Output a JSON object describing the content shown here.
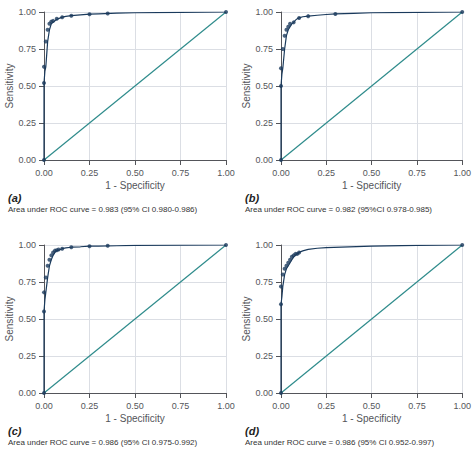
{
  "chart_data": [
    {
      "type": "line",
      "title": "(a)",
      "subtitle": "Area under ROC curve = 0.983 (95% CI 0.980-0.986)",
      "x_label": "1 - Specificity",
      "y_label": "Sensitivity",
      "xlim": [
        0,
        1
      ],
      "ylim": [
        0,
        1
      ],
      "xticks": [
        {
          "value": 0,
          "label": "0.00"
        },
        {
          "value": 0.25,
          "label": "0.25"
        },
        {
          "value": 0.5,
          "label": "0.50"
        },
        {
          "value": 0.75,
          "label": "0.75"
        },
        {
          "value": 1,
          "label": "1.00"
        }
      ],
      "yticks": [
        {
          "value": 0,
          "label": "0.00"
        },
        {
          "value": 0.25,
          "label": "0.25"
        },
        {
          "value": 0.5,
          "label": "0.50"
        },
        {
          "value": 0.75,
          "label": "0.75"
        },
        {
          "value": 1,
          "label": "1.00"
        }
      ],
      "grid": true,
      "series": [
        {
          "type": "line",
          "color": "#2e8b8b",
          "x": [
            0,
            1
          ],
          "values": [
            0,
            1
          ]
        },
        {
          "type": "line",
          "color": "#1a3a5c",
          "x": [
            0.0,
            0.0,
            0.005,
            0.01,
            0.02,
            0.03,
            0.04,
            0.05,
            0.06,
            0.07,
            0.08,
            0.09,
            0.1,
            0.12,
            0.15,
            0.2,
            0.25,
            0.3,
            0.4,
            0.5,
            0.75,
            1.0
          ],
          "values": [
            0.0,
            0.52,
            0.6,
            0.63,
            0.8,
            0.88,
            0.92,
            0.93,
            0.94,
            0.95,
            0.955,
            0.96,
            0.965,
            0.97,
            0.975,
            0.98,
            0.985,
            0.988,
            0.992,
            0.995,
            0.998,
            1.0
          ]
        },
        {
          "type": "scatter",
          "color": "#1a3a5c",
          "x": [
            0.0,
            0.0,
            0.0,
            0.01,
            0.02,
            0.03,
            0.04,
            0.05,
            0.07,
            0.1,
            0.15,
            0.25,
            0.35,
            1.0
          ],
          "values": [
            0.0,
            0.52,
            0.63,
            0.8,
            0.88,
            0.92,
            0.935,
            0.94,
            0.955,
            0.965,
            0.975,
            0.985,
            0.99,
            1.0
          ]
        }
      ]
    },
    {
      "type": "line",
      "title": "(b)",
      "subtitle": "Area under ROC curve = 0.982 (95%CI 0.978-0.985)",
      "x_label": "1 - Specificity",
      "y_label": "Sensitivity",
      "xlim": [
        0,
        1
      ],
      "ylim": [
        0,
        1
      ],
      "xticks": [
        {
          "value": 0,
          "label": "0.00"
        },
        {
          "value": 0.25,
          "label": "0.25"
        },
        {
          "value": 0.5,
          "label": "0.50"
        },
        {
          "value": 0.75,
          "label": "0.75"
        },
        {
          "value": 1,
          "label": "1.00"
        }
      ],
      "yticks": [
        {
          "value": 0,
          "label": "0.00"
        },
        {
          "value": 0.25,
          "label": "0.25"
        },
        {
          "value": 0.5,
          "label": "0.50"
        },
        {
          "value": 0.75,
          "label": "0.75"
        },
        {
          "value": 1,
          "label": "1.00"
        }
      ],
      "grid": true,
      "series": [
        {
          "type": "line",
          "color": "#2e8b8b",
          "x": [
            0,
            1
          ],
          "values": [
            0,
            1
          ]
        },
        {
          "type": "line",
          "color": "#1a3a5c",
          "x": [
            0.0,
            0.0,
            0.005,
            0.01,
            0.02,
            0.03,
            0.04,
            0.05,
            0.06,
            0.07,
            0.08,
            0.09,
            0.1,
            0.12,
            0.15,
            0.2,
            0.25,
            0.3,
            0.4,
            0.5,
            0.75,
            1.0
          ],
          "values": [
            0.0,
            0.5,
            0.58,
            0.62,
            0.75,
            0.84,
            0.88,
            0.9,
            0.92,
            0.93,
            0.945,
            0.955,
            0.96,
            0.968,
            0.972,
            0.978,
            0.983,
            0.987,
            0.991,
            0.995,
            0.998,
            1.0
          ]
        },
        {
          "type": "scatter",
          "color": "#1a3a5c",
          "x": [
            0.0,
            0.0,
            0.0,
            0.01,
            0.02,
            0.03,
            0.04,
            0.05,
            0.07,
            0.1,
            0.15,
            0.3,
            1.0
          ],
          "values": [
            0.0,
            0.5,
            0.62,
            0.75,
            0.84,
            0.88,
            0.9,
            0.92,
            0.93,
            0.96,
            0.972,
            0.987,
            1.0
          ]
        }
      ]
    },
    {
      "type": "line",
      "title": "(c)",
      "subtitle": "Area under ROC curve = 0.986 (95% CI 0.975-0.992)",
      "x_label": "1 - Specificity",
      "y_label": "Sensitivity",
      "xlim": [
        0,
        1
      ],
      "ylim": [
        0,
        1
      ],
      "xticks": [
        {
          "value": 0,
          "label": "0.00"
        },
        {
          "value": 0.25,
          "label": "0.25"
        },
        {
          "value": 0.5,
          "label": "0.50"
        },
        {
          "value": 0.75,
          "label": "0.75"
        },
        {
          "value": 1,
          "label": "1.00"
        }
      ],
      "yticks": [
        {
          "value": 0,
          "label": "0.00"
        },
        {
          "value": 0.25,
          "label": "0.25"
        },
        {
          "value": 0.5,
          "label": "0.50"
        },
        {
          "value": 0.75,
          "label": "0.75"
        },
        {
          "value": 1,
          "label": "1.00"
        }
      ],
      "grid": true,
      "series": [
        {
          "type": "line",
          "color": "#2e8b8b",
          "x": [
            0,
            1
          ],
          "values": [
            0,
            1
          ]
        },
        {
          "type": "line",
          "color": "#1a3a5c",
          "x": [
            0.0,
            0.0,
            0.005,
            0.01,
            0.02,
            0.03,
            0.04,
            0.05,
            0.06,
            0.07,
            0.08,
            0.09,
            0.1,
            0.12,
            0.15,
            0.2,
            0.25,
            0.3,
            0.4,
            0.5,
            0.75,
            1.0
          ],
          "values": [
            0.0,
            0.55,
            0.63,
            0.68,
            0.78,
            0.86,
            0.9,
            0.93,
            0.95,
            0.962,
            0.965,
            0.97,
            0.975,
            0.98,
            0.985,
            0.988,
            0.992,
            0.993,
            0.995,
            0.997,
            0.999,
            1.0
          ]
        },
        {
          "type": "scatter",
          "color": "#1a3a5c",
          "x": [
            0.0,
            0.0,
            0.0,
            0.01,
            0.02,
            0.03,
            0.04,
            0.05,
            0.06,
            0.07,
            0.08,
            0.1,
            0.15,
            0.25,
            0.35,
            1.0
          ],
          "values": [
            0.0,
            0.55,
            0.68,
            0.78,
            0.86,
            0.9,
            0.93,
            0.95,
            0.962,
            0.965,
            0.97,
            0.975,
            0.985,
            0.992,
            0.995,
            1.0
          ]
        }
      ]
    },
    {
      "type": "line",
      "title": "(d)",
      "subtitle": "Area under ROC curve = 0.986 (95% CI 0.952-0.997)",
      "x_label": "1 - Specificity",
      "y_label": "Sensitivity",
      "xlim": [
        0,
        1
      ],
      "ylim": [
        0,
        1
      ],
      "xticks": [
        {
          "value": 0,
          "label": "0.00"
        },
        {
          "value": 0.25,
          "label": "0.25"
        },
        {
          "value": 0.5,
          "label": "0.50"
        },
        {
          "value": 0.75,
          "label": "0.75"
        },
        {
          "value": 1,
          "label": "1.00"
        }
      ],
      "yticks": [
        {
          "value": 0,
          "label": "0.00"
        },
        {
          "value": 0.25,
          "label": "0.25"
        },
        {
          "value": 0.5,
          "label": "0.50"
        },
        {
          "value": 0.75,
          "label": "0.75"
        },
        {
          "value": 1,
          "label": "1.00"
        }
      ],
      "grid": true,
      "series": [
        {
          "type": "line",
          "color": "#2e8b8b",
          "x": [
            0,
            1
          ],
          "values": [
            0,
            1
          ]
        },
        {
          "type": "line",
          "color": "#1a3a5c",
          "x": [
            0.0,
            0.0,
            0.005,
            0.01,
            0.02,
            0.03,
            0.04,
            0.05,
            0.06,
            0.07,
            0.08,
            0.09,
            0.1,
            0.12,
            0.15,
            0.2,
            0.25,
            0.5,
            0.75,
            1.0
          ],
          "values": [
            0.0,
            0.6,
            0.65,
            0.72,
            0.8,
            0.84,
            0.86,
            0.88,
            0.9,
            0.92,
            0.93,
            0.94,
            0.95,
            0.96,
            0.97,
            0.978,
            0.982,
            0.992,
            0.997,
            1.0
          ]
        },
        {
          "type": "scatter",
          "color": "#1a3a5c",
          "x": [
            0.0,
            0.0,
            0.0,
            0.01,
            0.02,
            0.03,
            0.04,
            0.05,
            0.06,
            0.07,
            0.08,
            0.09,
            0.1,
            1.0
          ],
          "values": [
            0.0,
            0.6,
            0.72,
            0.8,
            0.84,
            0.86,
            0.88,
            0.9,
            0.92,
            0.93,
            0.94,
            0.94,
            0.95,
            1.0
          ]
        }
      ]
    }
  ]
}
